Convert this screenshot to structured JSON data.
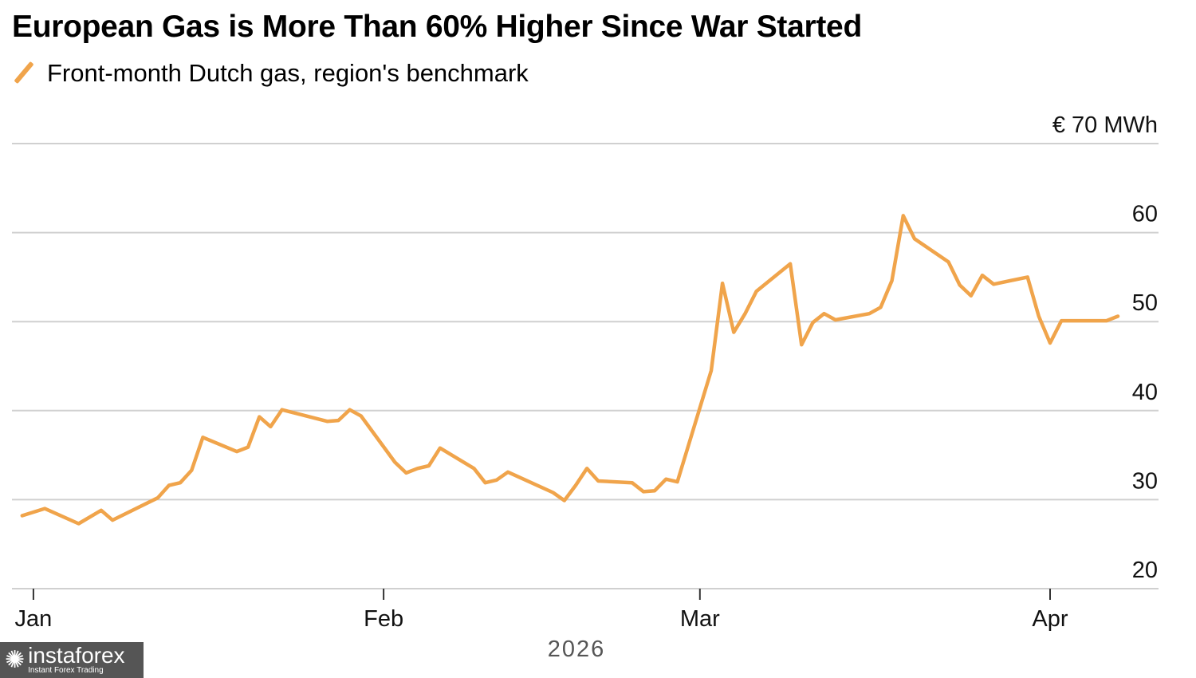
{
  "chart_data": {
    "type": "line",
    "title": "European Gas is More Than 60% Higher Since War Started",
    "legend": [
      "Front-month Dutch gas, region's benchmark"
    ],
    "legend_placement": "top-left",
    "ylabel": "€ 70 MWh",
    "xlabel": "2026",
    "x_unit": "days since Jan 1, 2026",
    "ylim": [
      20,
      70
    ],
    "xlim": [
      -1.9,
      99.6
    ],
    "yticks": [
      20,
      30,
      40,
      50,
      60,
      70
    ],
    "ytick_labels": [
      "20",
      "30",
      "40",
      "50",
      "60",
      "€ 70 MWh"
    ],
    "xticks": [
      0,
      31,
      59,
      90
    ],
    "xtick_labels": [
      "Jan",
      "Feb",
      "Mar",
      "Apr"
    ],
    "grid": true,
    "color": "#f0a44b",
    "series": [
      {
        "name": "Front-month Dutch gas, region's benchmark",
        "x": [
          -1,
          1,
          4,
          6,
          7,
          11,
          12,
          13,
          14,
          15,
          18,
          19,
          20,
          21,
          22,
          26,
          27,
          28,
          29,
          32,
          33,
          34,
          35,
          36,
          39,
          40,
          41,
          42,
          46,
          47,
          48,
          49,
          50,
          53,
          54,
          55,
          56,
          57,
          60,
          61,
          62,
          63,
          64,
          67,
          68,
          69,
          70,
          71,
          74,
          75,
          76,
          77,
          78,
          81,
          82,
          83,
          84,
          85,
          88,
          89,
          90,
          91,
          95,
          96
        ],
        "values": [
          28.2,
          29.0,
          27.3,
          28.8,
          27.7,
          30.2,
          31.6,
          31.9,
          33.3,
          37.0,
          35.4,
          35.9,
          39.3,
          38.2,
          40.1,
          38.8,
          38.9,
          40.1,
          39.4,
          34.2,
          33.0,
          33.5,
          33.8,
          35.8,
          33.5,
          31.9,
          32.2,
          33.1,
          30.8,
          29.9,
          31.6,
          33.5,
          32.1,
          31.9,
          30.9,
          31.0,
          32.3,
          32.0,
          44.5,
          54.3,
          48.8,
          50.9,
          53.4,
          56.5,
          47.4,
          49.9,
          50.9,
          50.2,
          50.9,
          51.6,
          54.6,
          61.9,
          59.3,
          56.7,
          54.1,
          52.9,
          55.2,
          54.2,
          55.0,
          50.6,
          47.6,
          50.1,
          50.1,
          50.6
        ]
      }
    ]
  },
  "watermark": {
    "name": "instaforex",
    "tagline": "Instant Forex Trading"
  }
}
